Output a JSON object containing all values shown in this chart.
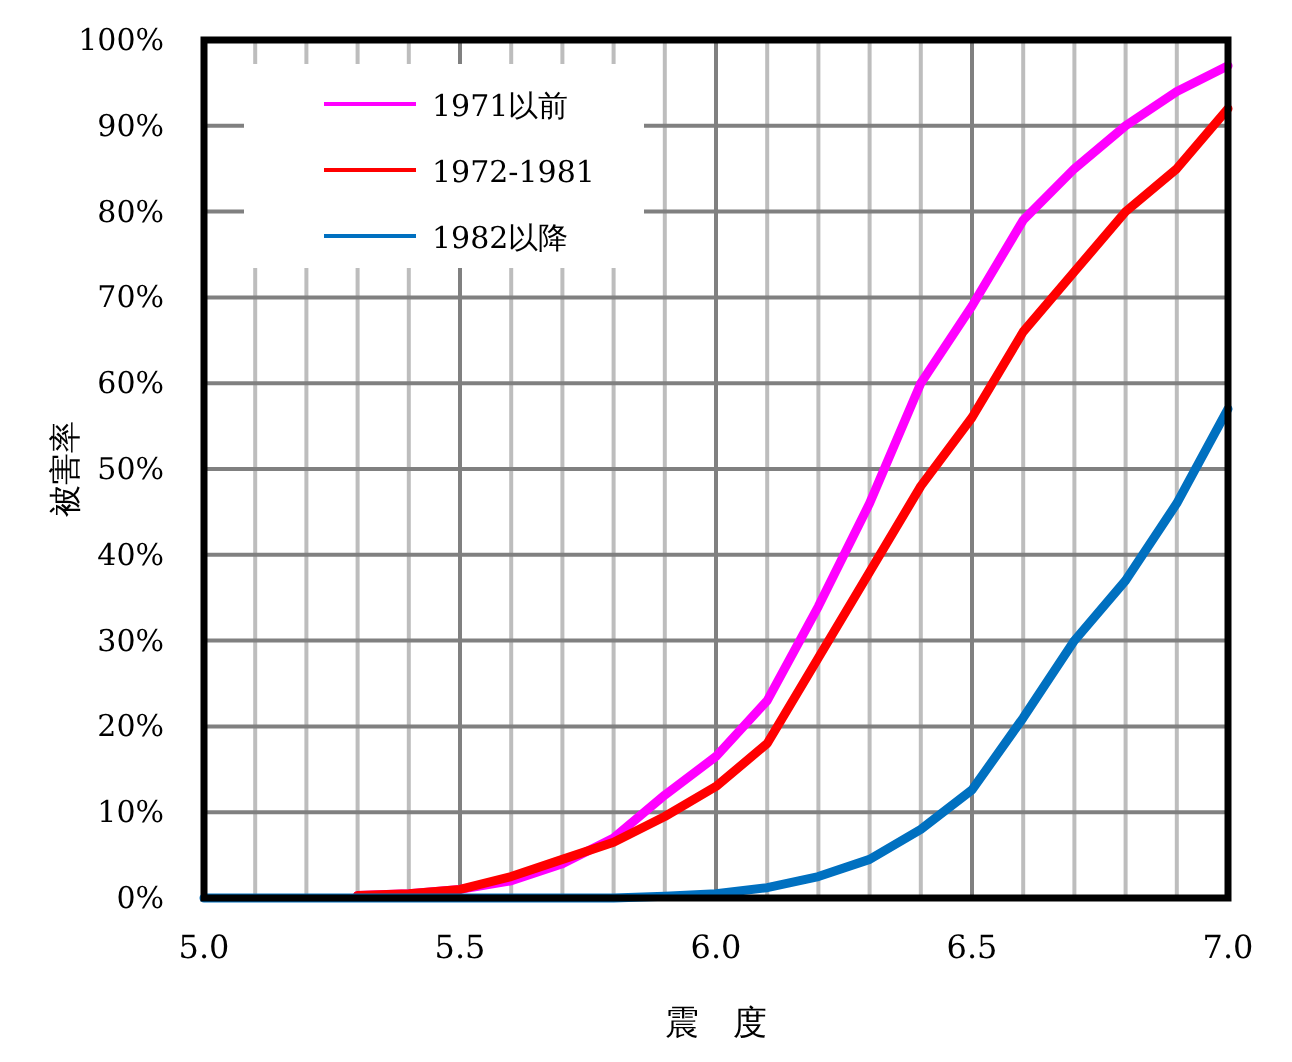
{
  "chart_data": {
    "type": "line",
    "xlabel": "震　度",
    "ylabel": "被害率",
    "xlim": [
      5,
      7
    ],
    "ylim": [
      0,
      100
    ],
    "xticks": [
      {
        "value": 5,
        "label": "5.0"
      },
      {
        "value": 5.1,
        "label": null
      },
      {
        "value": 5.2,
        "label": null
      },
      {
        "value": 5.3,
        "label": null
      },
      {
        "value": 5.4,
        "label": null
      },
      {
        "value": 5.5,
        "label": "5.5"
      },
      {
        "value": 5.6,
        "label": null
      },
      {
        "value": 5.7,
        "label": null
      },
      {
        "value": 5.8,
        "label": null
      },
      {
        "value": 5.9,
        "label": null
      },
      {
        "value": 6,
        "label": "6.0"
      },
      {
        "value": 6.1,
        "label": null
      },
      {
        "value": 6.2,
        "label": null
      },
      {
        "value": 6.3,
        "label": null
      },
      {
        "value": 6.4,
        "label": null
      },
      {
        "value": 6.5,
        "label": "6.5"
      },
      {
        "value": 6.6,
        "label": null
      },
      {
        "value": 6.7,
        "label": null
      },
      {
        "value": 6.8,
        "label": null
      },
      {
        "value": 6.9,
        "label": null
      },
      {
        "value": 7,
        "label": "7.0"
      }
    ],
    "yticks": [
      {
        "value": 0,
        "label": "0%"
      },
      {
        "value": 10,
        "label": "10%"
      },
      {
        "value": 20,
        "label": "20%"
      },
      {
        "value": 30,
        "label": "30%"
      },
      {
        "value": 40,
        "label": "40%"
      },
      {
        "value": 50,
        "label": "50%"
      },
      {
        "value": 60,
        "label": "60%"
      },
      {
        "value": 70,
        "label": "70%"
      },
      {
        "value": 80,
        "label": "80%"
      },
      {
        "value": 90,
        "label": "90%"
      },
      {
        "value": 100,
        "label": "100%"
      }
    ],
    "grid": true,
    "legend": "top left",
    "marker": "none",
    "line_style": "solid",
    "x": [
      5.3,
      5.4,
      5.5,
      5.6,
      5.7,
      5.8,
      5.9,
      6.0,
      6.1,
      6.2,
      6.3,
      6.4,
      6.5,
      6.6,
      6.7,
      6.8,
      6.9,
      7.0
    ],
    "series": [
      {
        "name": "1971以前",
        "color": "#ff00ff",
        "values": [
          0.3,
          0.5,
          1,
          2,
          4,
          7,
          12,
          16.5,
          23,
          34,
          46,
          60,
          69,
          79,
          85,
          90,
          94,
          97
        ]
      },
      {
        "name": "1972-1981",
        "color": "#ff0000",
        "values": [
          0.3,
          0.5,
          1,
          2.5,
          4.5,
          6.5,
          9.5,
          13,
          18,
          28,
          38,
          48,
          56,
          66,
          73,
          80,
          85,
          92
        ]
      },
      {
        "name": "1982以降",
        "color": "#0070c0",
        "x": [
          5.0,
          5.5,
          5.8,
          5.9,
          6.0,
          6.1,
          6.2,
          6.3,
          6.4,
          6.5,
          6.6,
          6.7,
          6.8,
          6.9,
          7.0
        ],
        "values": [
          0,
          0,
          0,
          0.2,
          0.5,
          1.2,
          2.5,
          4.5,
          8,
          12.6,
          21,
          30,
          37,
          46,
          57
        ]
      }
    ]
  }
}
